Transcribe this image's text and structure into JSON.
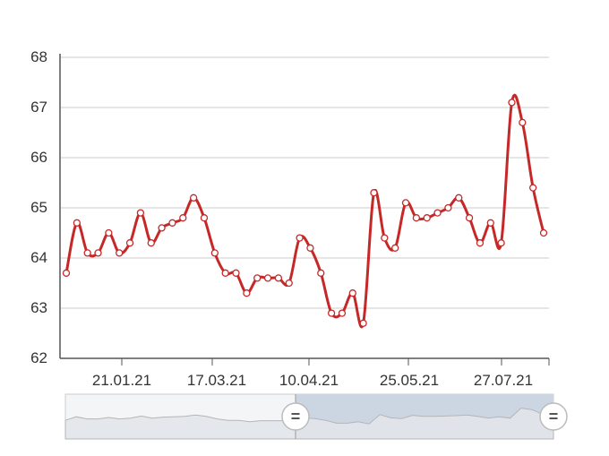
{
  "chart_data": {
    "type": "line",
    "title": "",
    "xlabel": "",
    "ylabel": "",
    "ylim": [
      62,
      68
    ],
    "y_ticks": [
      62,
      63,
      64,
      65,
      66,
      67,
      68
    ],
    "x_tick_labels": [
      "21.01.21",
      "17.03.21",
      "10.04.21",
      "25.05.21",
      "27.07.21"
    ],
    "grid": "horizontal",
    "legend": "none",
    "series": [
      {
        "color": "#c62828",
        "marker": "hollow-circle",
        "values": [
          63.7,
          64.7,
          64.1,
          64.1,
          64.5,
          64.1,
          64.3,
          64.9,
          64.3,
          64.6,
          64.7,
          64.8,
          65.2,
          64.8,
          64.1,
          63.7,
          63.7,
          63.3,
          63.6,
          63.6,
          63.6,
          63.5,
          64.4,
          64.2,
          63.7,
          62.9,
          62.9,
          63.3,
          62.7,
          65.3,
          64.4,
          64.2,
          65.1,
          64.8,
          64.8,
          64.9,
          65.0,
          65.2,
          64.8,
          64.3,
          64.7,
          64.3,
          67.1,
          66.7,
          65.4,
          64.5
        ]
      }
    ],
    "navigator": {
      "selected_range": "right portion",
      "handles": [
        "=",
        "="
      ]
    }
  },
  "colors": {
    "line": "#c62828",
    "grid": "#cccccc",
    "axis": "#555555",
    "navigator_selected": "#ccd6e3",
    "navigator_fill": "#e2e5ea"
  }
}
